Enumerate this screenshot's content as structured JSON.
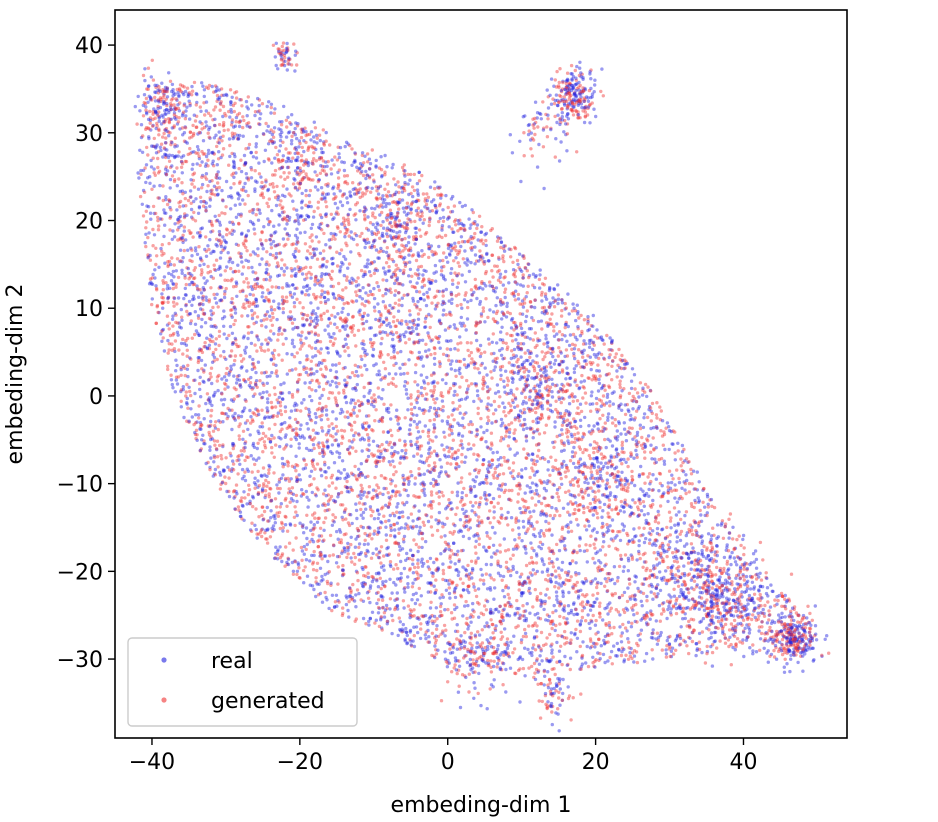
{
  "chart_data": {
    "type": "scatter",
    "xlabel": "embeding-dim 1",
    "ylabel": "embeding-dim 2",
    "xlim": [
      -45,
      54
    ],
    "ylim": [
      -39,
      44
    ],
    "xticks": [
      -40,
      -20,
      0,
      20,
      40
    ],
    "yticks": [
      -30,
      -20,
      -10,
      0,
      10,
      20,
      30,
      40
    ],
    "xtick_labels": [
      "−40",
      "−20",
      "0",
      "20",
      "40"
    ],
    "ytick_labels": [
      "−30",
      "−20",
      "−10",
      "0",
      "10",
      "20",
      "30",
      "40"
    ],
    "grid": false,
    "legend_position": "lower-left",
    "point_alpha": 0.45,
    "shape": {
      "polygon": [
        [
          -41,
          35
        ],
        [
          -33,
          36
        ],
        [
          -25,
          34
        ],
        [
          -18,
          30
        ],
        [
          -10,
          28
        ],
        [
          -2,
          25
        ],
        [
          5,
          20
        ],
        [
          13,
          14
        ],
        [
          20,
          9
        ],
        [
          28,
          0
        ],
        [
          36,
          -12
        ],
        [
          45,
          -22
        ],
        [
          50,
          -27
        ],
        [
          48,
          -30
        ],
        [
          40,
          -29
        ],
        [
          30,
          -30
        ],
        [
          20,
          -31
        ],
        [
          10,
          -32
        ],
        [
          0,
          -31
        ],
        [
          -8,
          -27
        ],
        [
          -15,
          -25
        ],
        [
          -22,
          -20
        ],
        [
          -28,
          -14
        ],
        [
          -33,
          -8
        ],
        [
          -37,
          0
        ],
        [
          -40,
          10
        ],
        [
          -42,
          25
        ]
      ],
      "clusters": [
        {
          "x": 17,
          "y": 34,
          "r": 1.5,
          "n": 220
        },
        {
          "x": 47,
          "y": -27.5,
          "r": 1.5,
          "n": 220
        },
        {
          "x": -22,
          "y": 39,
          "r": 0.8,
          "n": 50
        },
        {
          "x": -38,
          "y": 33,
          "r": 2,
          "n": 120
        },
        {
          "x": 13,
          "y": 30,
          "r": 2,
          "n": 60
        },
        {
          "x": 38,
          "y": -24,
          "r": 3,
          "n": 200
        },
        {
          "x": 33,
          "y": -21,
          "r": 3,
          "n": 160
        },
        {
          "x": 14,
          "y": -34,
          "r": 1.5,
          "n": 70
        },
        {
          "x": 21,
          "y": -10,
          "r": 2.5,
          "n": 120
        },
        {
          "x": 14,
          "y": 2,
          "r": 3,
          "n": 140
        },
        {
          "x": -7,
          "y": 20,
          "r": 2,
          "n": 90
        },
        {
          "x": -20,
          "y": 28,
          "r": 2,
          "n": 60
        },
        {
          "x": 4,
          "y": -31,
          "r": 2,
          "n": 80
        }
      ],
      "n_background": 8500
    },
    "series": [
      {
        "name": "real",
        "color": "#1f1fe0"
      },
      {
        "name": "generated",
        "color": "#f03030"
      }
    ]
  }
}
